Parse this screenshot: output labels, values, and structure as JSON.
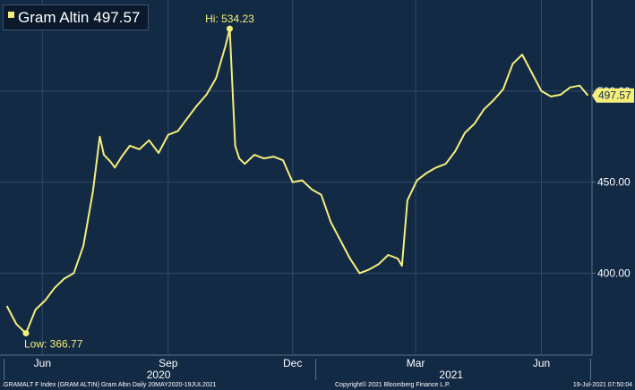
{
  "legend": {
    "series_name": "Gram Altin",
    "last_value": "497.57"
  },
  "colors": {
    "background": "#132a45",
    "line": "#f4ee7a",
    "grid": "#2e4a68",
    "axis_text": "#ffffff"
  },
  "annotations": {
    "high": "Hi: 534.23",
    "low": "Low: 366.77",
    "last_tag": "497.57"
  },
  "footer": {
    "left": ".GRAMALT F Index (GRAM ALTIN) Gram Altın  Daily 20MAY2020-19JUL2021",
    "center": "Copyright© 2021 Bloomberg Finance L.P.",
    "right": "19-Jul-2021 07:50:04"
  },
  "chart_data": {
    "type": "line",
    "title": "",
    "xlabel": "",
    "ylabel": "",
    "x_ticks": [
      "Jun",
      "Sep",
      "Dec",
      "Mar",
      "Jun"
    ],
    "x_years": [
      "2020",
      "2021"
    ],
    "y_ticks": [
      400.0,
      450.0,
      500.0
    ],
    "ylim": [
      355,
      550
    ],
    "grid": true,
    "legend_position": "top-left",
    "series": [
      {
        "name": "Gram Altin",
        "x": [
          "2020-05-20",
          "2020-05-27",
          "2020-06-03",
          "2020-06-10",
          "2020-06-17",
          "2020-06-24",
          "2020-07-01",
          "2020-07-08",
          "2020-07-15",
          "2020-07-22",
          "2020-07-27",
          "2020-07-30",
          "2020-08-04",
          "2020-08-07",
          "2020-08-12",
          "2020-08-18",
          "2020-08-25",
          "2020-09-01",
          "2020-09-08",
          "2020-09-15",
          "2020-09-22",
          "2020-09-29",
          "2020-10-06",
          "2020-10-13",
          "2020-10-20",
          "2020-10-27",
          "2020-10-30",
          "2020-11-03",
          "2020-11-06",
          "2020-11-10",
          "2020-11-17",
          "2020-11-24",
          "2020-12-01",
          "2020-12-08",
          "2020-12-15",
          "2020-12-22",
          "2020-12-29",
          "2021-01-05",
          "2021-01-12",
          "2021-01-19",
          "2021-01-26",
          "2021-02-02",
          "2021-02-09",
          "2021-02-16",
          "2021-02-23",
          "2021-03-02",
          "2021-03-05",
          "2021-03-09",
          "2021-03-16",
          "2021-03-23",
          "2021-03-30",
          "2021-04-06",
          "2021-04-13",
          "2021-04-20",
          "2021-04-27",
          "2021-05-04",
          "2021-05-11",
          "2021-05-18",
          "2021-05-25",
          "2021-06-01",
          "2021-06-08",
          "2021-06-15",
          "2021-06-22",
          "2021-06-29",
          "2021-07-06",
          "2021-07-13",
          "2021-07-19"
        ],
        "values": [
          382,
          372,
          367,
          380,
          385,
          392,
          397,
          400,
          415,
          445,
          475,
          465,
          461,
          458,
          464,
          470,
          468,
          473,
          466,
          476,
          478,
          485,
          492,
          498,
          507,
          525,
          534.23,
          470,
          463,
          460,
          465,
          463,
          464,
          462,
          450,
          451,
          446,
          443,
          428,
          418,
          408,
          400,
          402,
          405,
          410,
          408,
          404,
          440,
          451,
          455,
          458,
          460,
          467,
          477,
          482,
          490,
          495,
          501,
          515,
          520,
          510,
          500,
          497,
          498,
          502,
          503,
          497.57
        ]
      }
    ]
  }
}
